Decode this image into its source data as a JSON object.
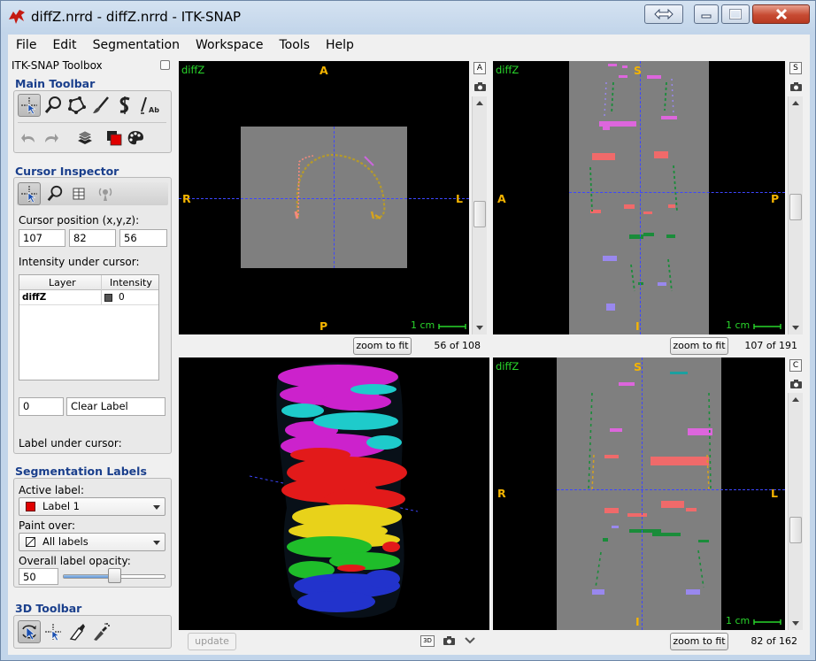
{
  "window": {
    "title": "diffZ.nrrd - diffZ.nrrd - ITK-SNAP"
  },
  "menubar": [
    "File",
    "Edit",
    "Segmentation",
    "Workspace",
    "Tools",
    "Help"
  ],
  "toolbox": {
    "title": "ITK-SNAP Toolbox",
    "main_toolbar_label": "Main Toolbar",
    "main_tools": [
      "crosshairs-tool",
      "zoom-tool",
      "polygon-tool",
      "paintbrush-tool",
      "snake-tool",
      "annotation-tool"
    ],
    "secondary_tools": [
      "undo",
      "redo",
      "layers",
      "label-color",
      "palette"
    ],
    "cursor_inspector": {
      "label": "Cursor Inspector",
      "position_label": "Cursor position (x,y,z):",
      "x": "107",
      "y": "82",
      "z": "56",
      "intensity_label": "Intensity under cursor:",
      "table_headers": [
        "Layer",
        "Intensity"
      ],
      "rows": [
        {
          "layer": "diffZ",
          "intensity": "0"
        }
      ],
      "label_under_cursor_label": "Label under cursor:",
      "label_id": "0",
      "label_name": "Clear Label"
    },
    "segmentation_labels": {
      "label": "Segmentation Labels",
      "active_label_caption": "Active label:",
      "active_label": "Label 1",
      "active_label_color": "#e00000",
      "paint_over_caption": "Paint over:",
      "paint_over": "All labels",
      "opacity_caption": "Overall label opacity:",
      "opacity": "50",
      "opacity_fraction": 0.5
    },
    "toolbar_3d": {
      "label": "3D Toolbar",
      "tools": [
        "rotate-3d-tool",
        "crosshair-3d-tool",
        "scalpel-tool",
        "spray-paint-tool"
      ]
    }
  },
  "views": {
    "axial": {
      "layer": "diffZ",
      "top": "A",
      "bottom": "P",
      "left": "R",
      "right": "L",
      "scale": "1 cm",
      "slice": "56 of 108",
      "zoom_button": "zoom to fit",
      "side_button": "A"
    },
    "sagittal": {
      "layer": "diffZ",
      "top": "S",
      "bottom": "I",
      "left": "A",
      "right": "P",
      "scale": "1 cm",
      "slice": "107 of 191",
      "zoom_button": "zoom to fit",
      "side_button": "S"
    },
    "render3d": {
      "update_button": "update"
    },
    "coronal": {
      "layer": "diffZ",
      "top": "S",
      "bottom": "I",
      "left": "R",
      "right": "L",
      "scale": "1 cm",
      "slice": "82 of 162",
      "zoom_button": "zoom to fit",
      "side_button": "C"
    }
  },
  "colors": {
    "crosshair": "#3d46ff",
    "orientation": "#f5b400",
    "layer_name": "#29d62b",
    "image_gray": "#7f7f7f"
  }
}
